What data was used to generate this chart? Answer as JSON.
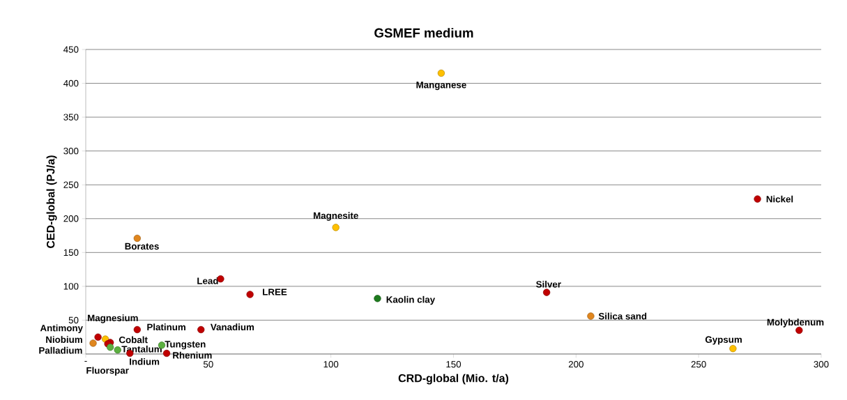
{
  "chart_data": {
    "type": "scatter",
    "title": "GSMEF medium",
    "xlabel": "CRD-global (Mio. t/a)",
    "ylabel": "CED-global (PJ/a)",
    "x": [
      145,
      102,
      21,
      274,
      55,
      67,
      119,
      188,
      206,
      291,
      264,
      47,
      21,
      5,
      8,
      10,
      3,
      9,
      10,
      13,
      18,
      31,
      33
    ],
    "values": [
      415,
      187,
      171,
      229,
      111,
      88,
      82,
      91,
      56,
      35,
      8,
      36,
      36,
      25,
      22,
      17,
      16,
      15,
      10,
      6,
      1,
      13,
      1
    ],
    "colors": [
      "#ffc000",
      "#ffc000",
      "#e0861e",
      "#c00000",
      "#c00000",
      "#c00000",
      "#1e7b1e",
      "#c00000",
      "#e0861e",
      "#c00000",
      "#ffc000",
      "#c00000",
      "#c00000",
      "#c00000",
      "#ffc000",
      "#c00000",
      "#e0861e",
      "#c00000",
      "#5cb040",
      "#5cb040",
      "#c00000",
      "#5cb040",
      "#c00000"
    ],
    "annotations": [
      {
        "text": "Manganese",
        "x": 145,
        "y": 415
      },
      {
        "text": "Magnesite",
        "x": 102,
        "y": 187
      },
      {
        "text": "Borates",
        "x": 21,
        "y": 171
      },
      {
        "text": "Nickel",
        "x": 274,
        "y": 229
      },
      {
        "text": "Lead",
        "x": 55,
        "y": 111
      },
      {
        "text": "LREE",
        "x": 67,
        "y": 88
      },
      {
        "text": "Kaolin clay",
        "x": 119,
        "y": 82
      },
      {
        "text": "Silver",
        "x": 188,
        "y": 91
      },
      {
        "text": "Silica sand",
        "x": 206,
        "y": 56
      },
      {
        "text": "Molybdenum",
        "x": 291,
        "y": 35
      },
      {
        "text": "Gypsum",
        "x": 264,
        "y": 8
      },
      {
        "text": "Vanadium",
        "x": 47,
        "y": 36
      },
      {
        "text": "Platinum",
        "x": 21,
        "y": 36
      },
      {
        "text": "Antimony",
        "x": 5,
        "y": 25
      },
      {
        "text": "Magnesium",
        "x": 8,
        "y": 22
      },
      {
        "text": "Cobalt",
        "x": 10,
        "y": 17
      },
      {
        "text": "Niobium",
        "x": 3,
        "y": 16
      },
      {
        "text": "Palladium",
        "x": 9,
        "y": 15
      },
      {
        "text": "Fluorspar",
        "x": 10,
        "y": 10
      },
      {
        "text": "Tantalum",
        "x": 13,
        "y": 6
      },
      {
        "text": "Indium",
        "x": 18,
        "y": 1
      },
      {
        "text": "Tungsten",
        "x": 31,
        "y": 13
      },
      {
        "text": "Rhenium",
        "x": 33,
        "y": 1
      }
    ],
    "xlim": [
      0,
      300
    ],
    "ylim": [
      0,
      450
    ],
    "xticks": [
      {
        "value": 0,
        "label": "-"
      },
      50,
      100,
      150,
      200,
      250,
      300
    ],
    "yticks": [
      {
        "value": 0,
        "label": null
      },
      50,
      100,
      150,
      200,
      250,
      300,
      350,
      400,
      450
    ],
    "grid": "y",
    "marker": "circle"
  }
}
